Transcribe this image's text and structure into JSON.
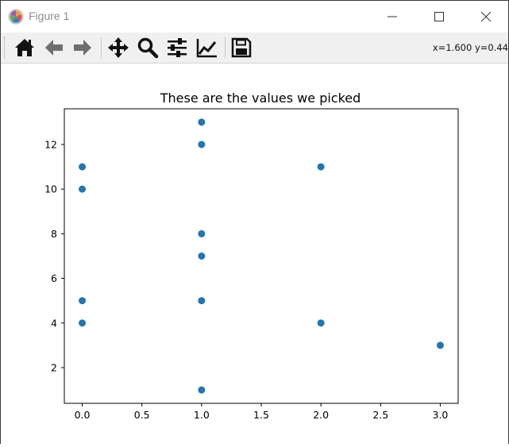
{
  "window": {
    "title": "Figure 1"
  },
  "toolbar": {
    "tools": [
      {
        "name": "home-icon"
      },
      {
        "name": "back-arrow-icon"
      },
      {
        "name": "forward-arrow-icon"
      },
      {
        "name": "pan-move-icon"
      },
      {
        "name": "zoom-magnifier-icon"
      },
      {
        "name": "subplots-config-icon"
      },
      {
        "name": "edit-axis-icon"
      },
      {
        "name": "save-floppy-icon"
      }
    ],
    "coords": "x=1.600 y=0.44"
  },
  "chart_data": {
    "type": "scatter",
    "title": "These are the values we picked",
    "xlabel": "",
    "ylabel": "",
    "xlim": [
      -0.15,
      3.15
    ],
    "ylim": [
      0.4,
      13.6
    ],
    "xticks": [
      0.0,
      0.5,
      1.0,
      1.5,
      2.0,
      2.5,
      3.0
    ],
    "xtick_labels": [
      "0.0",
      "0.5",
      "1.0",
      "1.5",
      "2.0",
      "2.5",
      "3.0"
    ],
    "yticks": [
      2,
      4,
      6,
      8,
      10,
      12
    ],
    "ytick_labels": [
      "2",
      "4",
      "6",
      "8",
      "10",
      "12"
    ],
    "grid": false,
    "marker_color": "#1f77b4",
    "points": [
      {
        "x": 0,
        "y": 11
      },
      {
        "x": 0,
        "y": 10
      },
      {
        "x": 0,
        "y": 5
      },
      {
        "x": 0,
        "y": 4
      },
      {
        "x": 1,
        "y": 13
      },
      {
        "x": 1,
        "y": 12
      },
      {
        "x": 1,
        "y": 8
      },
      {
        "x": 1,
        "y": 7
      },
      {
        "x": 1,
        "y": 5
      },
      {
        "x": 1,
        "y": 1
      },
      {
        "x": 2,
        "y": 11
      },
      {
        "x": 2,
        "y": 4
      },
      {
        "x": 3,
        "y": 3
      }
    ]
  }
}
